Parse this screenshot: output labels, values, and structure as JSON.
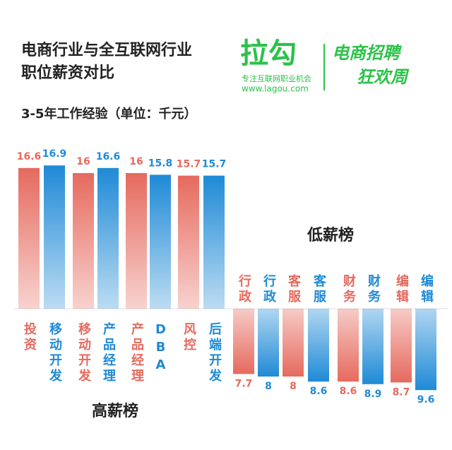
{
  "chart_data": [
    {
      "type": "bar",
      "direction": "up",
      "title": [
        "电商行业与全互联网行业",
        "职位薪资对比"
      ],
      "subtitle": "3-5年工作经验（单位：千元）",
      "label": "高薪榜",
      "categories": [
        "投资",
        "移动开发",
        "移动开发",
        "产品经理",
        "产品经理",
        "DBA",
        "风控",
        "后端开发"
      ],
      "values": [
        16.6,
        16.9,
        16,
        16.6,
        16,
        15.8,
        15.7,
        15.7
      ],
      "colors": [
        "#e66a5e",
        "#1f8ad6",
        "#e66a5e",
        "#1f8ad6",
        "#e66a5e",
        "#1f8ad6",
        "#e66a5e",
        "#1f8ad6"
      ]
    },
    {
      "type": "bar",
      "direction": "down",
      "label": "低薪榜",
      "categories": [
        "行政",
        "行政",
        "客服",
        "客服",
        "财务",
        "财务",
        "编辑",
        "编辑"
      ],
      "values": [
        7.7,
        8,
        8,
        8.6,
        8.6,
        8.9,
        8.7,
        9.6
      ],
      "colors": [
        "#e66a5e",
        "#1f8ad6",
        "#e66a5e",
        "#1f8ad6",
        "#e66a5e",
        "#1f8ad6",
        "#e66a5e",
        "#1f8ad6"
      ]
    }
  ],
  "logo": {
    "name": "拉勾",
    "slogan": "专注互联网职业机会",
    "url": "www.lagou.com",
    "campaign": [
      "电商招聘",
      "狂欢周"
    ]
  }
}
